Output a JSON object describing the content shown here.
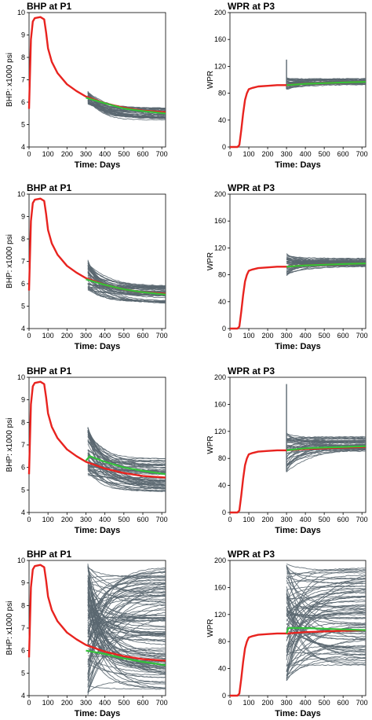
{
  "figure": {
    "colors": {
      "prior_reference": "#e8231f",
      "ensemble": "#5a6770",
      "ensemble_mean": "#33c13a",
      "axis": "#000000"
    }
  },
  "chart_data": [
    {
      "type": "line",
      "panel": "row1-left",
      "title": "BHP at P1",
      "xlabel": "Time: Days",
      "ylabel": "BHP: x1000 psi",
      "xlim": [
        0,
        720
      ],
      "ylim": [
        4,
        10
      ],
      "xticks": [
        "0",
        "100",
        "200",
        "300",
        "400",
        "500",
        "600",
        "700"
      ],
      "yticks": [
        "4",
        "5",
        "6",
        "7",
        "8",
        "9",
        "10"
      ],
      "reference": {
        "x": [
          0,
          10,
          20,
          30,
          60,
          80,
          90,
          100,
          120,
          150,
          200,
          250,
          300,
          400,
          500,
          600,
          720
        ],
        "y": [
          5.7,
          8.8,
          9.6,
          9.75,
          9.8,
          9.7,
          9.1,
          8.4,
          7.8,
          7.3,
          6.8,
          6.5,
          6.25,
          5.95,
          5.75,
          5.62,
          5.55
        ]
      },
      "history_end": 300,
      "ensemble": {
        "count": 40,
        "x_start": 310,
        "y_start_min": 5.9,
        "y_start_max": 6.5,
        "y_end_min": 5.2,
        "y_end_max": 5.75,
        "spikes": 0
      },
      "mean": {
        "x": [
          300,
          400,
          500,
          600,
          720
        ],
        "y": [
          6.2,
          5.95,
          5.72,
          5.6,
          5.5
        ]
      }
    },
    {
      "type": "line",
      "panel": "row1-right",
      "title": "WPR at P3",
      "xlabel": "Time: Days",
      "ylabel": "WPR",
      "xlim": [
        0,
        720
      ],
      "ylim": [
        0,
        200
      ],
      "xticks": [
        "0",
        "100",
        "200",
        "300",
        "400",
        "500",
        "600",
        "700"
      ],
      "yticks": [
        "0",
        "40",
        "80",
        "120",
        "160",
        "200"
      ],
      "reference": {
        "x": [
          0,
          40,
          50,
          60,
          70,
          80,
          90,
          100,
          120,
          150,
          200,
          250,
          300,
          400,
          500,
          600,
          720
        ],
        "y": [
          0,
          0,
          3,
          25,
          50,
          70,
          80,
          86,
          88,
          90,
          91,
          92,
          92,
          94,
          95,
          96,
          97
        ]
      },
      "history_end": 300,
      "ensemble": {
        "count": 30,
        "x_start": 300,
        "y_start_min": 86,
        "y_start_max": 104,
        "y_end_min": 93,
        "y_end_max": 102,
        "spikes": 1,
        "spike_max": 130
      },
      "mean": {
        "x": [
          300,
          400,
          500,
          600,
          720
        ],
        "y": [
          92,
          94,
          95,
          96,
          97
        ]
      }
    },
    {
      "type": "line",
      "panel": "row2-left",
      "title": "BHP at P1",
      "xlabel": "Time: Days",
      "ylabel": "BHP: x1000 psi",
      "xlim": [
        0,
        720
      ],
      "ylim": [
        4,
        10
      ],
      "xticks": [
        "0",
        "100",
        "200",
        "300",
        "400",
        "500",
        "600",
        "700"
      ],
      "yticks": [
        "4",
        "5",
        "6",
        "7",
        "8",
        "9",
        "10"
      ],
      "reference": {
        "x": [
          0,
          10,
          20,
          30,
          60,
          80,
          90,
          100,
          120,
          150,
          200,
          250,
          300,
          400,
          500,
          600,
          720
        ],
        "y": [
          5.7,
          8.8,
          9.6,
          9.75,
          9.8,
          9.7,
          9.1,
          8.4,
          7.8,
          7.3,
          6.8,
          6.5,
          6.25,
          5.95,
          5.75,
          5.62,
          5.55
        ]
      },
      "history_end": 300,
      "ensemble": {
        "count": 50,
        "x_start": 310,
        "y_start_min": 5.7,
        "y_start_max": 7.2,
        "y_end_min": 5.1,
        "y_end_max": 5.9,
        "spikes": 0
      },
      "mean": {
        "x": [
          300,
          400,
          500,
          600,
          720
        ],
        "y": [
          6.2,
          5.95,
          5.75,
          5.62,
          5.52
        ]
      }
    },
    {
      "type": "line",
      "panel": "row2-right",
      "title": "WPR at P3",
      "xlabel": "Time: Days",
      "ylabel": "WPR",
      "xlim": [
        0,
        720
      ],
      "ylim": [
        0,
        200
      ],
      "xticks": [
        "0",
        "100",
        "200",
        "300",
        "400",
        "500",
        "600",
        "700"
      ],
      "yticks": [
        "0",
        "40",
        "80",
        "120",
        "160",
        "200"
      ],
      "reference": {
        "x": [
          0,
          40,
          50,
          60,
          70,
          80,
          90,
          100,
          120,
          150,
          200,
          250,
          300,
          400,
          500,
          600,
          720
        ],
        "y": [
          0,
          0,
          3,
          25,
          50,
          70,
          80,
          86,
          88,
          90,
          91,
          92,
          92,
          94,
          95,
          96,
          97
        ]
      },
      "history_end": 300,
      "ensemble": {
        "count": 40,
        "x_start": 300,
        "y_start_min": 76,
        "y_start_max": 112,
        "y_end_min": 92,
        "y_end_max": 104,
        "spikes": 0
      },
      "mean": {
        "x": [
          300,
          400,
          500,
          600,
          720
        ],
        "y": [
          92,
          94,
          95,
          96,
          97
        ]
      }
    },
    {
      "type": "line",
      "panel": "row3-left",
      "title": "BHP at P1",
      "xlabel": "Time: Days",
      "ylabel": "BHP: x1000 psi",
      "xlim": [
        0,
        720
      ],
      "ylim": [
        4,
        10
      ],
      "xticks": [
        "0",
        "100",
        "200",
        "300",
        "400",
        "500",
        "600",
        "700"
      ],
      "yticks": [
        "4",
        "5",
        "6",
        "7",
        "8",
        "9",
        "10"
      ],
      "reference": {
        "x": [
          0,
          10,
          20,
          30,
          60,
          80,
          90,
          100,
          120,
          150,
          200,
          250,
          300,
          400,
          500,
          600,
          720
        ],
        "y": [
          5.7,
          8.8,
          9.6,
          9.75,
          9.8,
          9.7,
          9.1,
          8.4,
          7.8,
          7.3,
          6.8,
          6.5,
          6.25,
          5.95,
          5.75,
          5.62,
          5.55
        ]
      },
      "history_end": 300,
      "ensemble": {
        "count": 60,
        "x_start": 310,
        "y_start_min": 5.6,
        "y_start_max": 7.9,
        "y_end_min": 4.9,
        "y_end_max": 6.4,
        "spikes": 0
      },
      "mean": {
        "x": [
          300,
          320,
          400,
          500,
          600,
          720
        ],
        "y": [
          6.3,
          6.5,
          6.25,
          6.0,
          5.85,
          5.7
        ]
      }
    },
    {
      "type": "line",
      "panel": "row3-right",
      "title": "WPR at P3",
      "xlabel": "Time: Days",
      "ylabel": "WPR",
      "xlim": [
        0,
        720
      ],
      "ylim": [
        0,
        200
      ],
      "xticks": [
        "0",
        "100",
        "200",
        "300",
        "400",
        "500",
        "600",
        "700"
      ],
      "yticks": [
        "0",
        "40",
        "80",
        "120",
        "160",
        "200"
      ],
      "reference": {
        "x": [
          0,
          40,
          50,
          60,
          70,
          80,
          90,
          100,
          120,
          150,
          200,
          250,
          300,
          400,
          500,
          600,
          720
        ],
        "y": [
          0,
          0,
          3,
          25,
          50,
          70,
          80,
          86,
          88,
          90,
          91,
          92,
          92,
          94,
          95,
          96,
          97
        ]
      },
      "history_end": 300,
      "ensemble": {
        "count": 45,
        "x_start": 300,
        "y_start_min": 60,
        "y_start_max": 120,
        "y_end_min": 90,
        "y_end_max": 112,
        "spikes": 1,
        "spike_max": 190
      },
      "mean": {
        "x": [
          300,
          400,
          500,
          600,
          720
        ],
        "y": [
          92,
          95,
          96,
          97,
          98
        ]
      }
    },
    {
      "type": "line",
      "panel": "row4-left",
      "title": "BHP at P1",
      "xlabel": "Time: Days",
      "ylabel": "BHP: x1000 psi",
      "xlim": [
        0,
        720
      ],
      "ylim": [
        4,
        10
      ],
      "xticks": [
        "0",
        "100",
        "200",
        "300",
        "400",
        "500",
        "600",
        "700"
      ],
      "yticks": [
        "4",
        "5",
        "6",
        "7",
        "8",
        "9",
        "10"
      ],
      "reference": {
        "x": [
          0,
          10,
          20,
          30,
          60,
          80,
          90,
          100,
          120,
          150,
          200,
          250,
          300,
          400,
          500,
          600,
          720
        ],
        "y": [
          5.7,
          8.8,
          9.6,
          9.75,
          9.8,
          9.7,
          9.1,
          8.4,
          7.8,
          7.3,
          6.8,
          6.5,
          6.25,
          5.95,
          5.75,
          5.62,
          5.55
        ]
      },
      "history_end": 300,
      "ensemble": {
        "count": 110,
        "x_start": 310,
        "y_start_min": 4.0,
        "y_start_max": 9.9,
        "y_end_min": 4.0,
        "y_end_max": 9.8,
        "spikes": 0
      },
      "mean": {
        "x": [
          300,
          400,
          500,
          600,
          720
        ],
        "y": [
          6.0,
          5.85,
          5.65,
          5.5,
          5.35
        ]
      }
    },
    {
      "type": "line",
      "panel": "row4-right",
      "title": "WPR at P3",
      "xlabel": "Time: Days",
      "ylabel": "WPR",
      "xlim": [
        0,
        720
      ],
      "ylim": [
        0,
        200
      ],
      "xticks": [
        "0",
        "100",
        "200",
        "300",
        "400",
        "500",
        "600",
        "700"
      ],
      "yticks": [
        "0",
        "40",
        "80",
        "120",
        "160",
        "200"
      ],
      "reference": {
        "x": [
          0,
          40,
          50,
          60,
          70,
          80,
          90,
          100,
          120,
          150,
          200,
          250,
          300,
          400,
          500,
          600,
          720
        ],
        "y": [
          0,
          0,
          3,
          25,
          50,
          70,
          80,
          86,
          88,
          90,
          91,
          92,
          92,
          94,
          95,
          96,
          97
        ]
      },
      "history_end": 300,
      "ensemble": {
        "count": 80,
        "x_start": 300,
        "y_start_min": 20,
        "y_start_max": 195,
        "y_end_min": 40,
        "y_end_max": 195,
        "spikes": 0
      },
      "mean": {
        "x": [
          300,
          310,
          400,
          500,
          600,
          720
        ],
        "y": [
          92,
          100,
          100,
          99,
          98,
          97
        ]
      }
    }
  ]
}
